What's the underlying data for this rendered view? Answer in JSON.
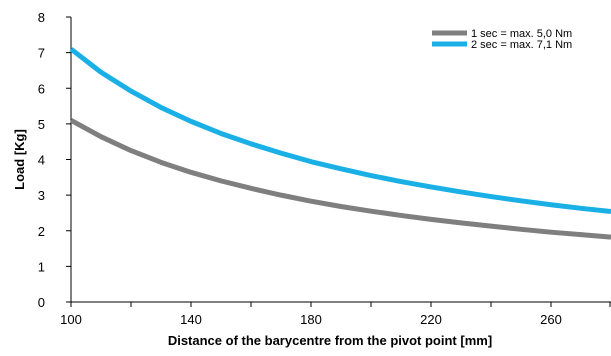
{
  "chart_data": {
    "type": "line",
    "xlabel": "Distance of the barycentre from the pivot point [mm]",
    "ylabel": "Load [Kg]",
    "xlim": [
      100,
      280
    ],
    "ylim": [
      0,
      8
    ],
    "x_ticks": [
      100,
      140,
      180,
      220,
      260
    ],
    "x_minor_ticks": [
      120,
      160,
      200,
      240,
      280
    ],
    "y_ticks": [
      0,
      1,
      2,
      3,
      4,
      5,
      6,
      7,
      8
    ],
    "grid": false,
    "legend_position": "top-right",
    "x": [
      100,
      110,
      120,
      130,
      140,
      150,
      160,
      170,
      180,
      190,
      200,
      210,
      220,
      230,
      240,
      250,
      260,
      270,
      280
    ],
    "series": [
      {
        "name": "1 sec = max. 5,0 Nm",
        "color": "#7f7f7f",
        "values": [
          5.1,
          4.64,
          4.25,
          3.92,
          3.64,
          3.4,
          3.19,
          3.0,
          2.83,
          2.68,
          2.55,
          2.43,
          2.32,
          2.22,
          2.13,
          2.04,
          1.96,
          1.89,
          1.82
        ]
      },
      {
        "name": "2 sec = max. 7,1 Nm",
        "color": "#1ab0e6",
        "values": [
          7.1,
          6.45,
          5.92,
          5.46,
          5.07,
          4.73,
          4.44,
          4.18,
          3.94,
          3.74,
          3.55,
          3.38,
          3.23,
          3.09,
          2.96,
          2.84,
          2.73,
          2.63,
          2.54
        ]
      }
    ]
  }
}
